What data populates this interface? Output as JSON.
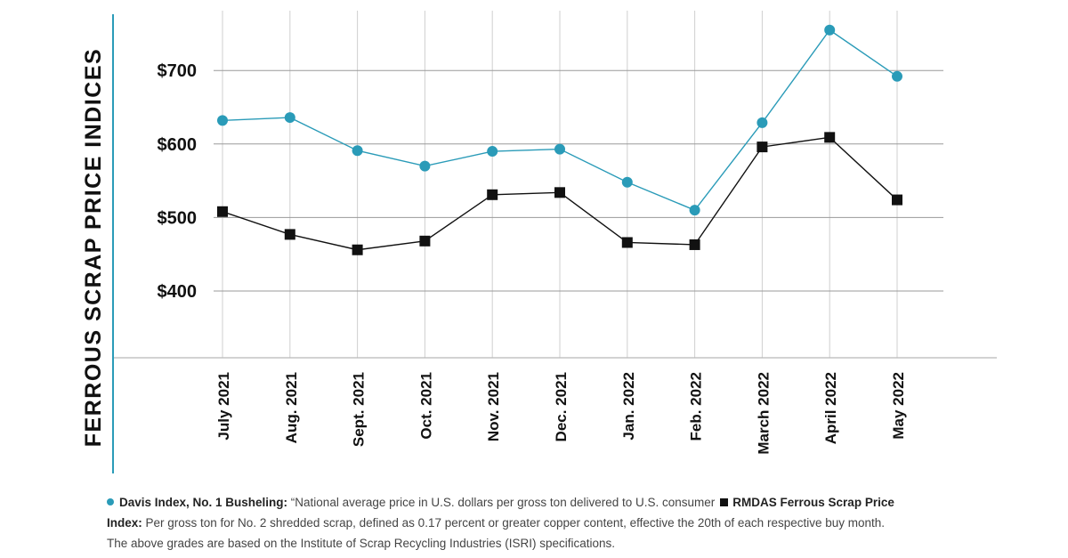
{
  "chart_data": {
    "type": "line",
    "ylabel": "FERROUS SCRAP PRICE INDICES",
    "xlabel": "",
    "categories": [
      "July 2021",
      "Aug. 2021",
      "Sept. 2021",
      "Oct. 2021",
      "Nov. 2021",
      "Dec. 2021",
      "Jan. 2022",
      "Feb. 2022",
      "March 2022",
      "April 2022",
      "May 2022"
    ],
    "yticks": [
      "$400",
      "$500",
      "$600",
      "$700"
    ],
    "ytick_values": [
      400,
      500,
      600,
      700
    ],
    "ylim": [
      310,
      790
    ],
    "grid": true,
    "series": [
      {
        "name": "Davis Index, No. 1 Busheling",
        "color": "#2a9bb8",
        "marker": "circle",
        "values": [
          632,
          636,
          591,
          570,
          590,
          593,
          548,
          510,
          629,
          755,
          692
        ]
      },
      {
        "name": "RMDAS Ferrous Scrap Price Index",
        "color": "#111111",
        "marker": "square",
        "values": [
          508,
          477,
          456,
          468,
          531,
          534,
          466,
          463,
          596,
          609,
          524
        ]
      }
    ]
  },
  "legend": {
    "davis_name": "Davis Index, No. 1 Busheling:",
    "davis_desc": " “National average price in U.S. dollars per gross ton delivered to U.S. consumer",
    "rmdas_name_a": "RMDAS Ferrous Scrap Price",
    "rmdas_name_b": "Index:",
    "rmdas_desc": " Per gross ton for No. 2 shredded scrap, defined as 0.17 percent or greater copper content, effective the 20th of each respective buy month.",
    "note": "The above grades are based on the Institute of Scrap Recycling Industries (ISRI) specifications."
  }
}
